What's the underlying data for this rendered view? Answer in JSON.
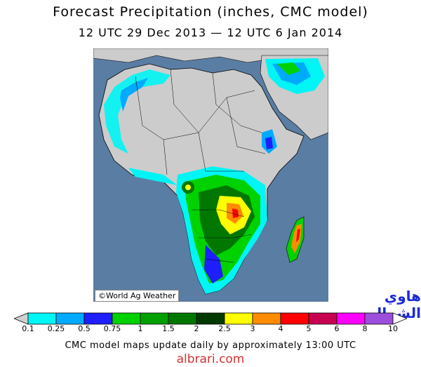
{
  "title": "Forecast Precipitation (inches, CMC model)",
  "subtitle": "12 UTC 29 Dec 2013 — 12 UTC 6 Jan 2014",
  "credit": "©World Ag Weather",
  "watermark_arabic": "هاوي الشمال",
  "legend": {
    "ticks": [
      "0.1",
      "0.25",
      "0.5",
      "0.75",
      "1",
      "1.5",
      "2",
      "2.5",
      "3",
      "4",
      "5",
      "6",
      "8",
      "10"
    ],
    "colors": [
      "#00f5f5",
      "#00aaff",
      "#1e1eff",
      "#00d200",
      "#00a000",
      "#007800",
      "#003a00",
      "#ffff00",
      "#ff8c00",
      "#ff0000",
      "#c80050",
      "#ff00ff",
      "#9d4fdc"
    ],
    "low_color": "#d0d0d0",
    "high_color": "#ffffff"
  },
  "footer": "CMC model maps update daily by approximately 13:00 UTC",
  "site": "albrari.com"
}
